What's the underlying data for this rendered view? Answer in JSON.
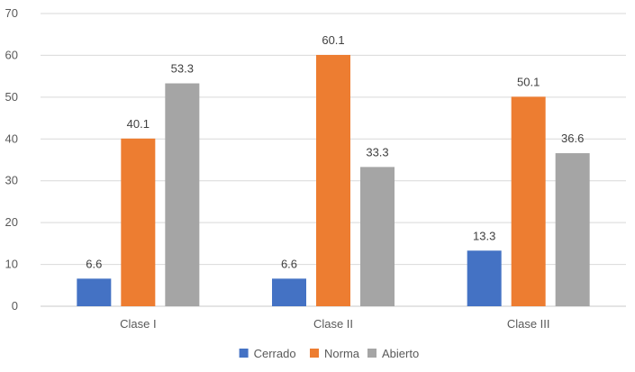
{
  "chart_data": {
    "type": "bar",
    "categories": [
      "Clase I",
      "Clase II",
      "Clase III"
    ],
    "series": [
      {
        "name": "Cerrado",
        "color": "#4472C4",
        "values": [
          6.6,
          6.6,
          13.3
        ]
      },
      {
        "name": "Norma",
        "color": "#ED7D31",
        "values": [
          40.1,
          60.1,
          50.1
        ]
      },
      {
        "name": "Abierto",
        "color": "#A5A5A5",
        "values": [
          53.3,
          33.3,
          36.6
        ]
      }
    ],
    "ylim": [
      0,
      70
    ],
    "yticks": [
      0,
      10,
      20,
      30,
      40,
      50,
      60,
      70
    ],
    "grid": true,
    "legend_position": "bottom-center",
    "data_labels": true
  }
}
